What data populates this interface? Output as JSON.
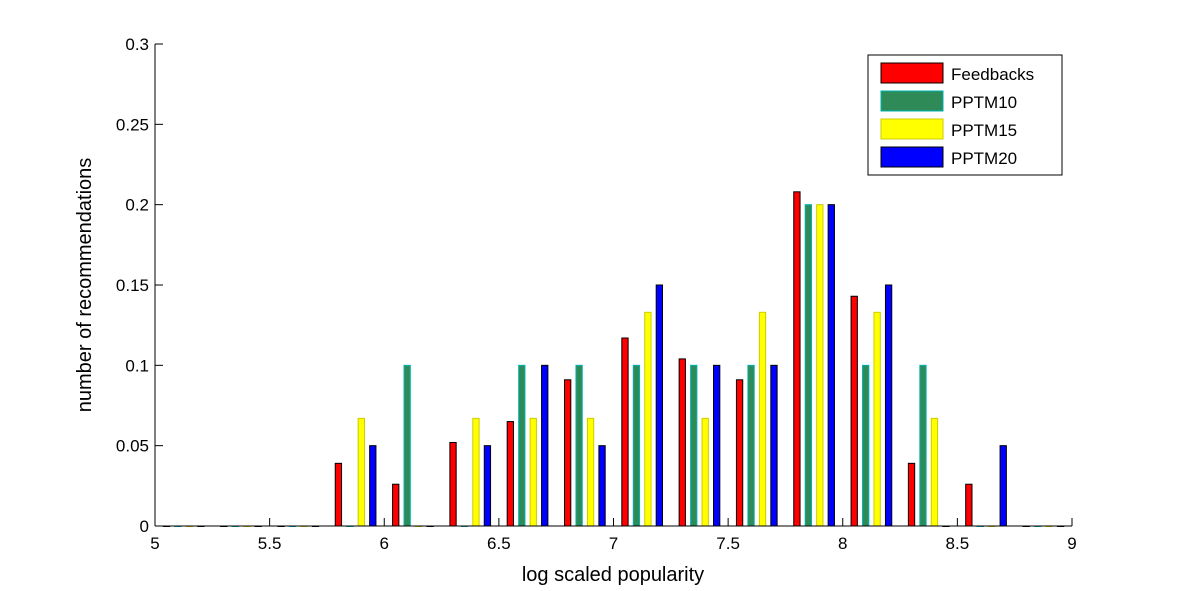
{
  "chart_data": {
    "type": "bar",
    "title": "",
    "xlabel": "log scaled popularity",
    "ylabel": "number of recommendations",
    "xlim": [
      5,
      9
    ],
    "ylim": [
      0,
      0.3
    ],
    "xticks": [
      5,
      5.5,
      6,
      6.5,
      7,
      7.5,
      8,
      8.5,
      9
    ],
    "xtick_labels": [
      "5",
      "5.5",
      "6",
      "6.5",
      "7",
      "7.5",
      "8",
      "8.5",
      "9"
    ],
    "yticks": [
      0,
      0.05,
      0.1,
      0.15,
      0.2,
      0.25,
      0.3
    ],
    "ytick_labels": [
      "0",
      "0.05",
      "0.1",
      "0.15",
      "0.2",
      "0.25",
      "0.3"
    ],
    "grid": false,
    "legend_position": "top-right",
    "x": [
      5.125,
      5.375,
      5.625,
      5.875,
      6.125,
      6.375,
      6.625,
      6.875,
      7.125,
      7.375,
      7.625,
      7.875,
      8.125,
      8.375,
      8.625,
      8.875
    ],
    "series": [
      {
        "name": "Feedbacks",
        "color": "#ff0000",
        "edge": "#000000",
        "values": [
          0,
          0,
          0,
          0.039,
          0.026,
          0.052,
          0.065,
          0.091,
          0.117,
          0.104,
          0.091,
          0.208,
          0.143,
          0.039,
          0.026,
          0
        ]
      },
      {
        "name": "PPTM10",
        "color": "#2e8b57",
        "edge": "#00b3b3",
        "values": [
          0,
          0,
          0,
          0,
          0.1,
          0,
          0.1,
          0.1,
          0.1,
          0.1,
          0.1,
          0.2,
          0.1,
          0.1,
          0,
          0
        ]
      },
      {
        "name": "PPTM15",
        "color": "#ffff00",
        "edge": "#cccc00",
        "values": [
          0,
          0,
          0,
          0.067,
          0,
          0.067,
          0.067,
          0.067,
          0.133,
          0.067,
          0.133,
          0.2,
          0.133,
          0.067,
          0,
          0
        ]
      },
      {
        "name": "PPTM20",
        "color": "#0000ff",
        "edge": "#000000",
        "values": [
          0,
          0,
          0,
          0.05,
          0,
          0.05,
          0.1,
          0.05,
          0.15,
          0.1,
          0.1,
          0.2,
          0.15,
          0,
          0.05,
          0
        ]
      }
    ]
  }
}
